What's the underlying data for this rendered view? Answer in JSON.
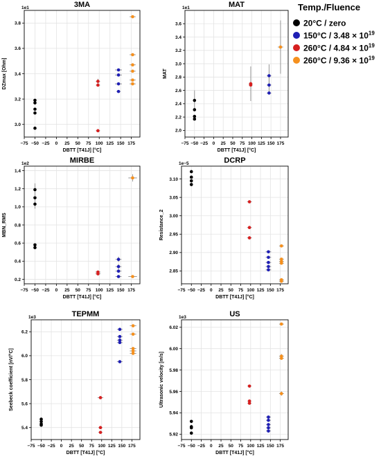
{
  "legend": {
    "title": "Temp./Fluence",
    "placement": "top-right, outside plots",
    "entries": [
      {
        "label": "20°C / zero",
        "color": "#000000"
      },
      {
        "label": "150°C / 3.48 × 10",
        "sup": "19",
        "color": "#1f1fb4"
      },
      {
        "label": "260°C / 4.84 × 10",
        "sup": "19",
        "color": "#d62020"
      },
      {
        "label": "260°C / 9.36 × 10",
        "sup": "19",
        "color": "#f5901e"
      }
    ]
  },
  "chart_data": [
    {
      "type": "scatter",
      "title": "3MA",
      "xlabel": "DBTT [T41J] [°C]",
      "ylabel": "DZmax [Ohm]",
      "scale_label": "1e1",
      "xlim": [
        -75,
        195
      ],
      "ylim": [
        2.9,
        3.9
      ],
      "xticks": [
        -75,
        -50,
        -25,
        0,
        25,
        50,
        75,
        100,
        125,
        150,
        175
      ],
      "yticks": [
        3.0,
        3.2,
        3.4,
        3.6,
        3.8
      ],
      "ytick_labels": [
        "3.0",
        "3.2",
        "3.4",
        "3.6",
        "3.8"
      ],
      "grid": true,
      "series": [
        {
          "group": 0,
          "points": [
            [
              -50,
              3.19,
              3,
              0
            ],
            [
              -50,
              3.17,
              3,
              0
            ],
            [
              -50,
              3.12,
              3,
              0
            ],
            [
              -50,
              3.09,
              3,
              0
            ],
            [
              -50,
              2.97,
              3,
              0
            ]
          ]
        },
        {
          "group": 1,
          "points": [
            [
              145,
              3.43,
              8,
              0.01
            ],
            [
              145,
              3.39,
              8,
              0.01
            ],
            [
              145,
              3.32,
              8,
              0.01
            ],
            [
              145,
              3.26,
              5,
              0
            ]
          ]
        },
        {
          "group": 2,
          "points": [
            [
              97,
              3.34,
              5,
              0.02
            ],
            [
              97,
              3.31,
              5,
              0.01
            ],
            [
              97,
              2.95,
              5,
              0
            ]
          ]
        },
        {
          "group": 3,
          "points": [
            [
              178,
              3.85,
              7,
              0
            ],
            [
              178,
              3.55,
              7,
              0
            ],
            [
              178,
              3.47,
              7,
              0
            ],
            [
              178,
              3.42,
              7,
              0
            ],
            [
              178,
              3.35,
              7,
              0
            ],
            [
              178,
              3.32,
              7,
              0
            ]
          ]
        }
      ]
    },
    {
      "type": "scatter",
      "title": "MAT",
      "xlabel": "DBTT [T41J] [°C]",
      "ylabel": "MAT",
      "scale_label": "1e1",
      "xlim": [
        -75,
        195
      ],
      "ylim": [
        1.9,
        3.8
      ],
      "xticks": [
        -75,
        -50,
        -25,
        0,
        25,
        50,
        75,
        100,
        125,
        150,
        175
      ],
      "yticks": [
        2.0,
        2.2,
        2.4,
        2.6,
        2.8,
        3.0,
        3.2,
        3.4,
        3.6
      ],
      "ytick_labels": [
        "2.0",
        "2.2",
        "2.4",
        "2.6",
        "2.8",
        "3.0",
        "3.2",
        "3.4",
        "3.6"
      ],
      "grid": true,
      "series": [
        {
          "group": 0,
          "points": [
            [
              -50,
              2.45,
              0,
              0.15
            ],
            [
              -50,
              2.31,
              0,
              0
            ],
            [
              -50,
              2.21,
              0,
              0
            ],
            [
              -50,
              2.17,
              0,
              0
            ]
          ]
        },
        {
          "group": 1,
          "points": [
            [
              145,
              2.82,
              6,
              0.17
            ],
            [
              145,
              2.68,
              6,
              0.12
            ],
            [
              145,
              2.56,
              6,
              0
            ]
          ]
        },
        {
          "group": 2,
          "points": [
            [
              97,
              2.7,
              5,
              0.26
            ],
            [
              97,
              2.68,
              5,
              0
            ]
          ]
        },
        {
          "group": 3,
          "points": [
            [
              175,
              3.25,
              7,
              0.4
            ]
          ]
        }
      ]
    },
    {
      "type": "scatter",
      "title": "MIRBE",
      "xlabel": "DBTT [T41J] [°C]",
      "ylabel": "MBN_RMS",
      "scale_label": "1e2",
      "xlim": [
        -75,
        195
      ],
      "ylim": [
        0.15,
        1.45
      ],
      "xticks": [
        -75,
        -50,
        -25,
        0,
        25,
        50,
        75,
        100,
        125,
        150,
        175
      ],
      "yticks": [
        0.2,
        0.4,
        0.6,
        0.8,
        1.0,
        1.2,
        1.4
      ],
      "ytick_labels": [
        "0.2",
        "0.4",
        "0.6",
        "0.8",
        "1.0",
        "1.2",
        "1.4"
      ],
      "grid": true,
      "series": [
        {
          "group": 0,
          "points": [
            [
              -50,
              1.19,
              0,
              0.07
            ],
            [
              -50,
              1.1,
              0,
              0
            ],
            [
              -50,
              1.03,
              0,
              0.05
            ],
            [
              -50,
              0.58,
              0,
              0
            ],
            [
              -50,
              0.55,
              0,
              0
            ]
          ]
        },
        {
          "group": 1,
          "points": [
            [
              145,
              0.42,
              7,
              0.03
            ],
            [
              145,
              0.34,
              7,
              0.03
            ],
            [
              145,
              0.29,
              7,
              0
            ],
            [
              145,
              0.23,
              7,
              0
            ]
          ]
        },
        {
          "group": 2,
          "points": [
            [
              97,
              0.28,
              6,
              0.01
            ],
            [
              97,
              0.26,
              6,
              0
            ]
          ]
        },
        {
          "group": 3,
          "points": [
            [
              178,
              1.32,
              10,
              0.04
            ],
            [
              178,
              0.23,
              10,
              0
            ]
          ]
        }
      ]
    },
    {
      "type": "scatter",
      "title": "DCRP",
      "xlabel": "DBTT [T41J] [°C]",
      "ylabel": "Resistance_2",
      "scale_label": "1e−5",
      "xlim": [
        -75,
        195
      ],
      "ylim": [
        2.815,
        3.135
      ],
      "xticks": [
        -75,
        -50,
        -25,
        0,
        25,
        50,
        75,
        100,
        125,
        150,
        175
      ],
      "yticks": [
        2.85,
        2.9,
        2.95,
        3.0,
        3.05,
        3.1
      ],
      "ytick_labels": [
        "2.85",
        "2.90",
        "2.95",
        "3.00",
        "3.05",
        "3.10"
      ],
      "grid": true,
      "series": [
        {
          "group": 0,
          "points": [
            [
              -50,
              3.12,
              0,
              0
            ],
            [
              -50,
              3.105,
              0,
              0
            ],
            [
              -50,
              3.095,
              0,
              0
            ],
            [
              -50,
              3.085,
              0,
              0
            ]
          ]
        },
        {
          "group": 1,
          "points": [
            [
              145,
              2.902,
              7,
              0
            ],
            [
              145,
              2.887,
              7,
              0
            ],
            [
              145,
              2.873,
              7,
              0
            ],
            [
              145,
              2.862,
              7,
              0
            ],
            [
              145,
              2.853,
              7,
              0
            ]
          ]
        },
        {
          "group": 2,
          "points": [
            [
              97,
              3.038,
              6,
              0
            ],
            [
              97,
              2.968,
              6,
              0
            ],
            [
              97,
              2.94,
              6,
              0
            ]
          ]
        },
        {
          "group": 3,
          "points": [
            [
              178,
              2.918,
              6,
              0
            ],
            [
              178,
              2.882,
              6,
              0
            ],
            [
              178,
              2.876,
              6,
              0
            ],
            [
              178,
              2.871,
              6,
              0
            ],
            [
              178,
              2.826,
              6,
              0
            ],
            [
              178,
              2.822,
              6,
              0
            ]
          ]
        }
      ]
    },
    {
      "type": "scatter",
      "title": "TEPMM",
      "xlabel": "DBTT [T41J] [°C]",
      "ylabel": "Seebeck coefficient [nV/°C]",
      "scale_label": "1e3",
      "xlim": [
        -75,
        195
      ],
      "ylim": [
        5.3,
        6.3
      ],
      "xticks": [
        -75,
        -50,
        -25,
        0,
        25,
        50,
        75,
        100,
        125,
        150,
        175
      ],
      "yticks": [
        5.4,
        5.6,
        5.8,
        6.0,
        6.2
      ],
      "ytick_labels": [
        "5.4",
        "5.6",
        "5.8",
        "6.0",
        "6.2"
      ],
      "grid": true,
      "series": [
        {
          "group": 0,
          "points": [
            [
              -50,
              5.47,
              0,
              0
            ],
            [
              -50,
              5.45,
              0,
              0
            ],
            [
              -50,
              5.43,
              0,
              0
            ],
            [
              -50,
              5.42,
              0,
              0
            ]
          ]
        },
        {
          "group": 1,
          "points": [
            [
              145,
              6.22,
              7,
              0
            ],
            [
              145,
              6.16,
              7,
              0
            ],
            [
              145,
              6.13,
              7,
              0
            ],
            [
              145,
              6.11,
              7,
              0
            ],
            [
              145,
              5.95,
              7,
              0
            ]
          ]
        },
        {
          "group": 2,
          "points": [
            [
              97,
              5.65,
              7,
              0
            ],
            [
              97,
              5.4,
              5,
              0
            ],
            [
              97,
              5.36,
              5,
              0
            ]
          ]
        },
        {
          "group": 3,
          "points": [
            [
              178,
              6.25,
              8,
              0
            ],
            [
              178,
              6.18,
              8,
              0
            ],
            [
              178,
              6.06,
              8,
              0
            ],
            [
              178,
              6.04,
              8,
              0
            ],
            [
              178,
              6.02,
              8,
              0
            ]
          ]
        }
      ]
    },
    {
      "type": "scatter",
      "title": "US",
      "xlabel": "DBTT [T41J] [°C]",
      "ylabel": "Ultrasonic velocity [m/s]",
      "scale_label": "1e3",
      "xlim": [
        -75,
        195
      ],
      "ylim": [
        5.915,
        6.027
      ],
      "xticks": [
        -75,
        -50,
        -25,
        0,
        25,
        50,
        75,
        100,
        125,
        150,
        175
      ],
      "yticks": [
        5.92,
        5.94,
        5.96,
        5.98,
        6.0,
        6.02
      ],
      "ytick_labels": [
        "5.92",
        "5.94",
        "5.96",
        "5.98",
        "6.00",
        "6.02"
      ],
      "grid": true,
      "series": [
        {
          "group": 0,
          "points": [
            [
              -50,
              5.932,
              0,
              0.001
            ],
            [
              -50,
              5.927,
              0,
              0.001
            ],
            [
              -50,
              5.926,
              0,
              0
            ],
            [
              -50,
              5.921,
              0,
              0
            ]
          ]
        },
        {
          "group": 1,
          "points": [
            [
              145,
              5.936,
              6,
              0.001
            ],
            [
              145,
              5.933,
              6,
              0
            ],
            [
              145,
              5.929,
              6,
              0
            ],
            [
              145,
              5.926,
              6,
              0
            ],
            [
              145,
              5.923,
              6,
              0
            ]
          ]
        },
        {
          "group": 2,
          "points": [
            [
              97,
              5.965,
              5,
              0
            ],
            [
              97,
              5.951,
              5,
              0.001
            ],
            [
              97,
              5.949,
              5,
              0
            ]
          ]
        },
        {
          "group": 3,
          "points": [
            [
              178,
              6.023,
              6,
              0.001
            ],
            [
              178,
              5.993,
              6,
              0.002
            ],
            [
              178,
              5.991,
              6,
              0.001
            ],
            [
              178,
              5.958,
              6,
              0.002
            ]
          ]
        }
      ]
    }
  ]
}
